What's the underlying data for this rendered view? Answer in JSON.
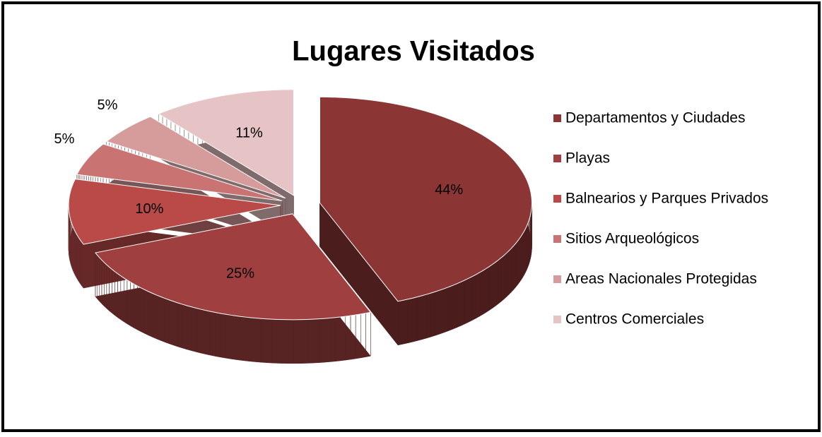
{
  "chart_data": {
    "type": "pie",
    "title": "Lugares Visitados",
    "categories": [
      "Departamentos y Ciudades",
      "Playas",
      "Balnearios y Parques Privados",
      "Sitios Arqueológicos",
      "Areas Nacionales Protegidas",
      "Centros Comerciales"
    ],
    "values": [
      44,
      25,
      10,
      5,
      5,
      11
    ],
    "value_labels": [
      "44%",
      "25%",
      "10%",
      "5%",
      "5%",
      "11%"
    ],
    "colors": [
      "#8b3535",
      "#a03f3f",
      "#b94a48",
      "#c97473",
      "#d69c9c",
      "#e6c3c5"
    ],
    "legend": "right"
  }
}
